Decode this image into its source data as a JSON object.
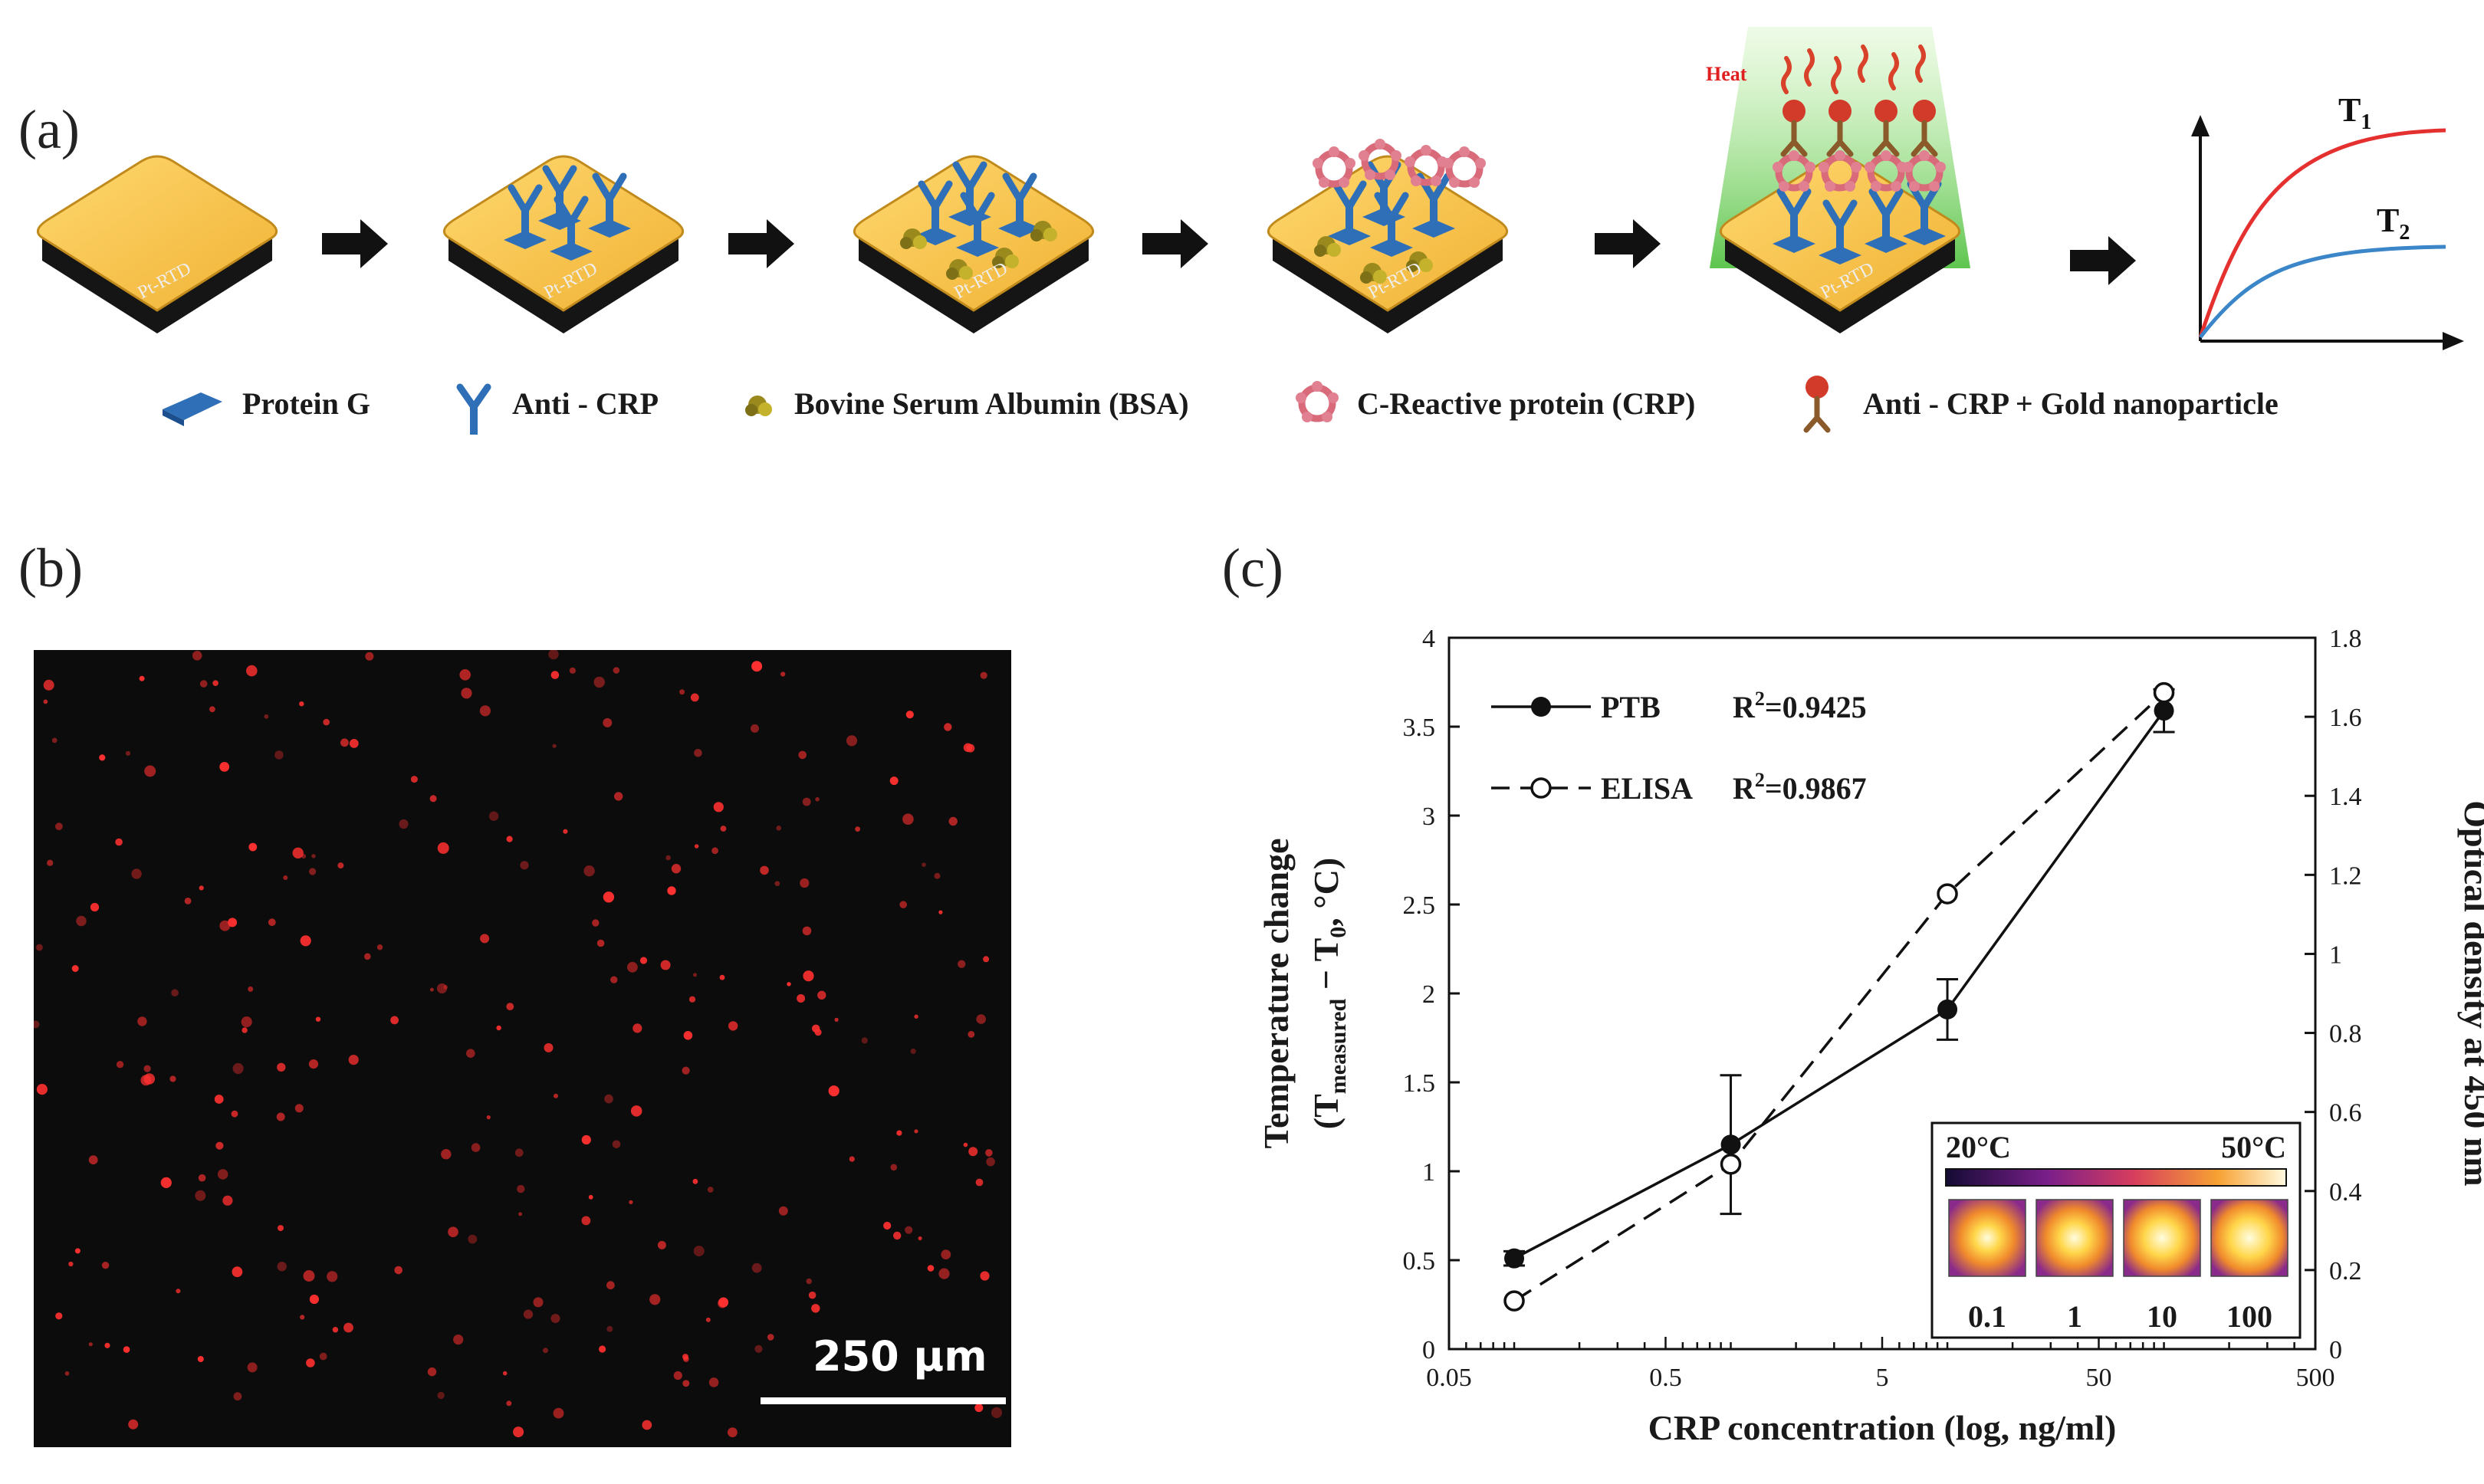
{
  "panels": {
    "a": "(a)",
    "b": "(b)",
    "c": "(c)"
  },
  "schematic": {
    "chip_label": "Pt-RTD",
    "heat_label": "Heat",
    "graph_labels": {
      "t1": "T",
      "t1_sub": "1",
      "t2": "T",
      "t2_sub": "2"
    },
    "legend": [
      {
        "label": "Protein G",
        "icon": "protein-g-icon"
      },
      {
        "label": "Anti - CRP",
        "icon": "antibody-icon"
      },
      {
        "label": "Bovine Serum Albumin (BSA)",
        "icon": "bsa-icon"
      },
      {
        "label": "C-Reactive protein (CRP)",
        "icon": "crp-icon"
      },
      {
        "label": "Anti - CRP +  Gold nanoparticle",
        "icon": "gold-nanoparticle-antibody-icon"
      }
    ],
    "colors": {
      "chip_top": "#f7c54a",
      "chip_base": "#1a1a1a",
      "protein": "#2f6fb8",
      "crp": "#d86a7a",
      "gold": "#d23a2a",
      "green_glow": "#7fd36a",
      "red_curve": "#e53030",
      "blue_curve": "#3a86c8"
    }
  },
  "micrograph": {
    "scale_bar": "250 μm",
    "colors": {
      "background": "#0c0c0c",
      "dots": "#ff3030"
    }
  },
  "chart_data": {
    "type": "line",
    "xlabel": "CRP concentration (log, ng/ml)",
    "ylabel_left": "Temperature change",
    "ylabel_left_sub": "(T",
    "ylabel_left_sub_measured": "measured",
    "ylabel_left_sub_rest": " − T",
    "ylabel_left_sub_0": "0",
    "ylabel_left_sub_unit": ", °C)",
    "ylabel_right": "Optical density at 450 nm",
    "x_scale": "log",
    "xlim": [
      0.05,
      500
    ],
    "x_ticks": [
      0.05,
      0.5,
      5,
      50,
      500
    ],
    "x_tick_labels": [
      "0.05",
      "0.5",
      "5",
      "50",
      "500"
    ],
    "ylim_left": [
      0,
      4
    ],
    "y_ticks_left": [
      0,
      0.5,
      1,
      1.5,
      2,
      2.5,
      3,
      3.5,
      4
    ],
    "y_tick_labels_left": [
      "0",
      "0.5",
      "1",
      "1.5",
      "2",
      "2.5",
      "3",
      "3.5",
      "4"
    ],
    "ylim_right": [
      0,
      1.8
    ],
    "y_ticks_right": [
      0,
      0.2,
      0.4,
      0.6,
      0.8,
      1,
      1.2,
      1.4,
      1.6,
      1.8
    ],
    "y_tick_labels_right": [
      "0",
      "0.2",
      "0.4",
      "0.6",
      "0.8",
      "1",
      "1.2",
      "1.4",
      "1.6",
      "1.8"
    ],
    "series": [
      {
        "name": "PTB",
        "r2_label": "R",
        "r2_sup": "2",
        "r2_value": "=0.9425",
        "axis": "left",
        "style": "solid-filled",
        "x": [
          0.1,
          1,
          10,
          100
        ],
        "y": [
          0.51,
          1.15,
          1.91,
          3.59
        ],
        "err": [
          0.04,
          0.39,
          0.17,
          0.12
        ]
      },
      {
        "name": "ELISA",
        "r2_label": "R",
        "r2_sup": "2",
        "r2_value": "=0.9867",
        "axis": "right",
        "style": "dashed-open",
        "x": [
          0.1,
          1,
          10,
          100
        ],
        "y": [
          0.122,
          0.468,
          1.152,
          1.661
        ]
      }
    ],
    "inset": {
      "scale_min": "20°C",
      "scale_max": "50°C",
      "labels": [
        "0.1",
        "1",
        "10",
        "100"
      ],
      "intensities": [
        0.45,
        0.6,
        0.8,
        0.9
      ]
    }
  }
}
